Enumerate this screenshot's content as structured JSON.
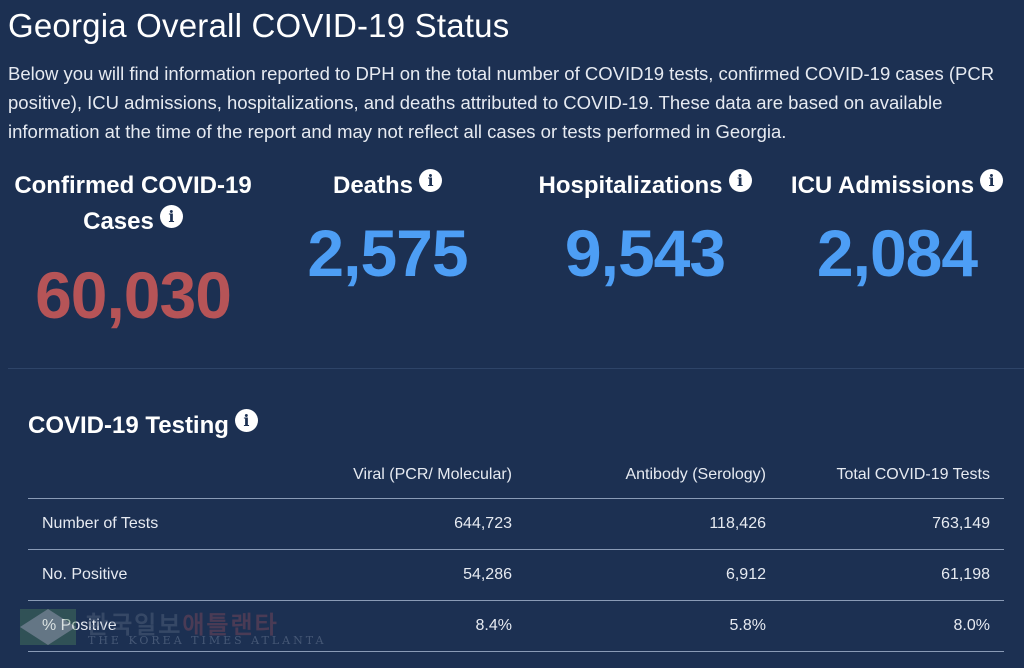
{
  "page": {
    "title": "Georgia Overall COVID-19 Status",
    "intro": "Below you will find information reported to DPH on the total number of COVID19 tests, confirmed COVID-19 cases (PCR positive), ICU admissions, hospitalizations, and deaths attributed to COVID-19. These data are based on available information at the time of the report and may not reflect all cases or tests performed in Georgia."
  },
  "metrics": {
    "cases": {
      "label_line1": "Confirmed COVID-19",
      "label_line2": "Cases",
      "value": "60,030",
      "color": "#b65457"
    },
    "deaths": {
      "label": "Deaths",
      "value": "2,575",
      "color": "#4d9ef5"
    },
    "hospitalizations": {
      "label": "Hospitalizations",
      "value": "9,543",
      "color": "#4d9ef5"
    },
    "icu": {
      "label": "ICU Admissions",
      "value": "2,084",
      "color": "#4d9ef5"
    }
  },
  "info_icon_glyph": "i",
  "testing": {
    "title": "COVID-19 Testing",
    "headers": [
      "",
      "Viral (PCR/ Molecular)",
      "Antibody (Serology)",
      "Total COVID-19 Tests"
    ],
    "rows": [
      [
        "Number of Tests",
        "644,723",
        "118,426",
        "763,149"
      ],
      [
        "No. Positive",
        "54,286",
        "6,912",
        "61,198"
      ],
      [
        "% Positive",
        "8.4%",
        "5.8%",
        "8.0%"
      ]
    ]
  },
  "watermark": {
    "korean_main": "한국일보",
    "korean_red": "애틀랜타",
    "english": "THE KOREA TIMES ATLANTA"
  },
  "colors": {
    "background": "#1c3052",
    "cases_value": "#b65457",
    "stat_value": "#4d9ef5"
  }
}
